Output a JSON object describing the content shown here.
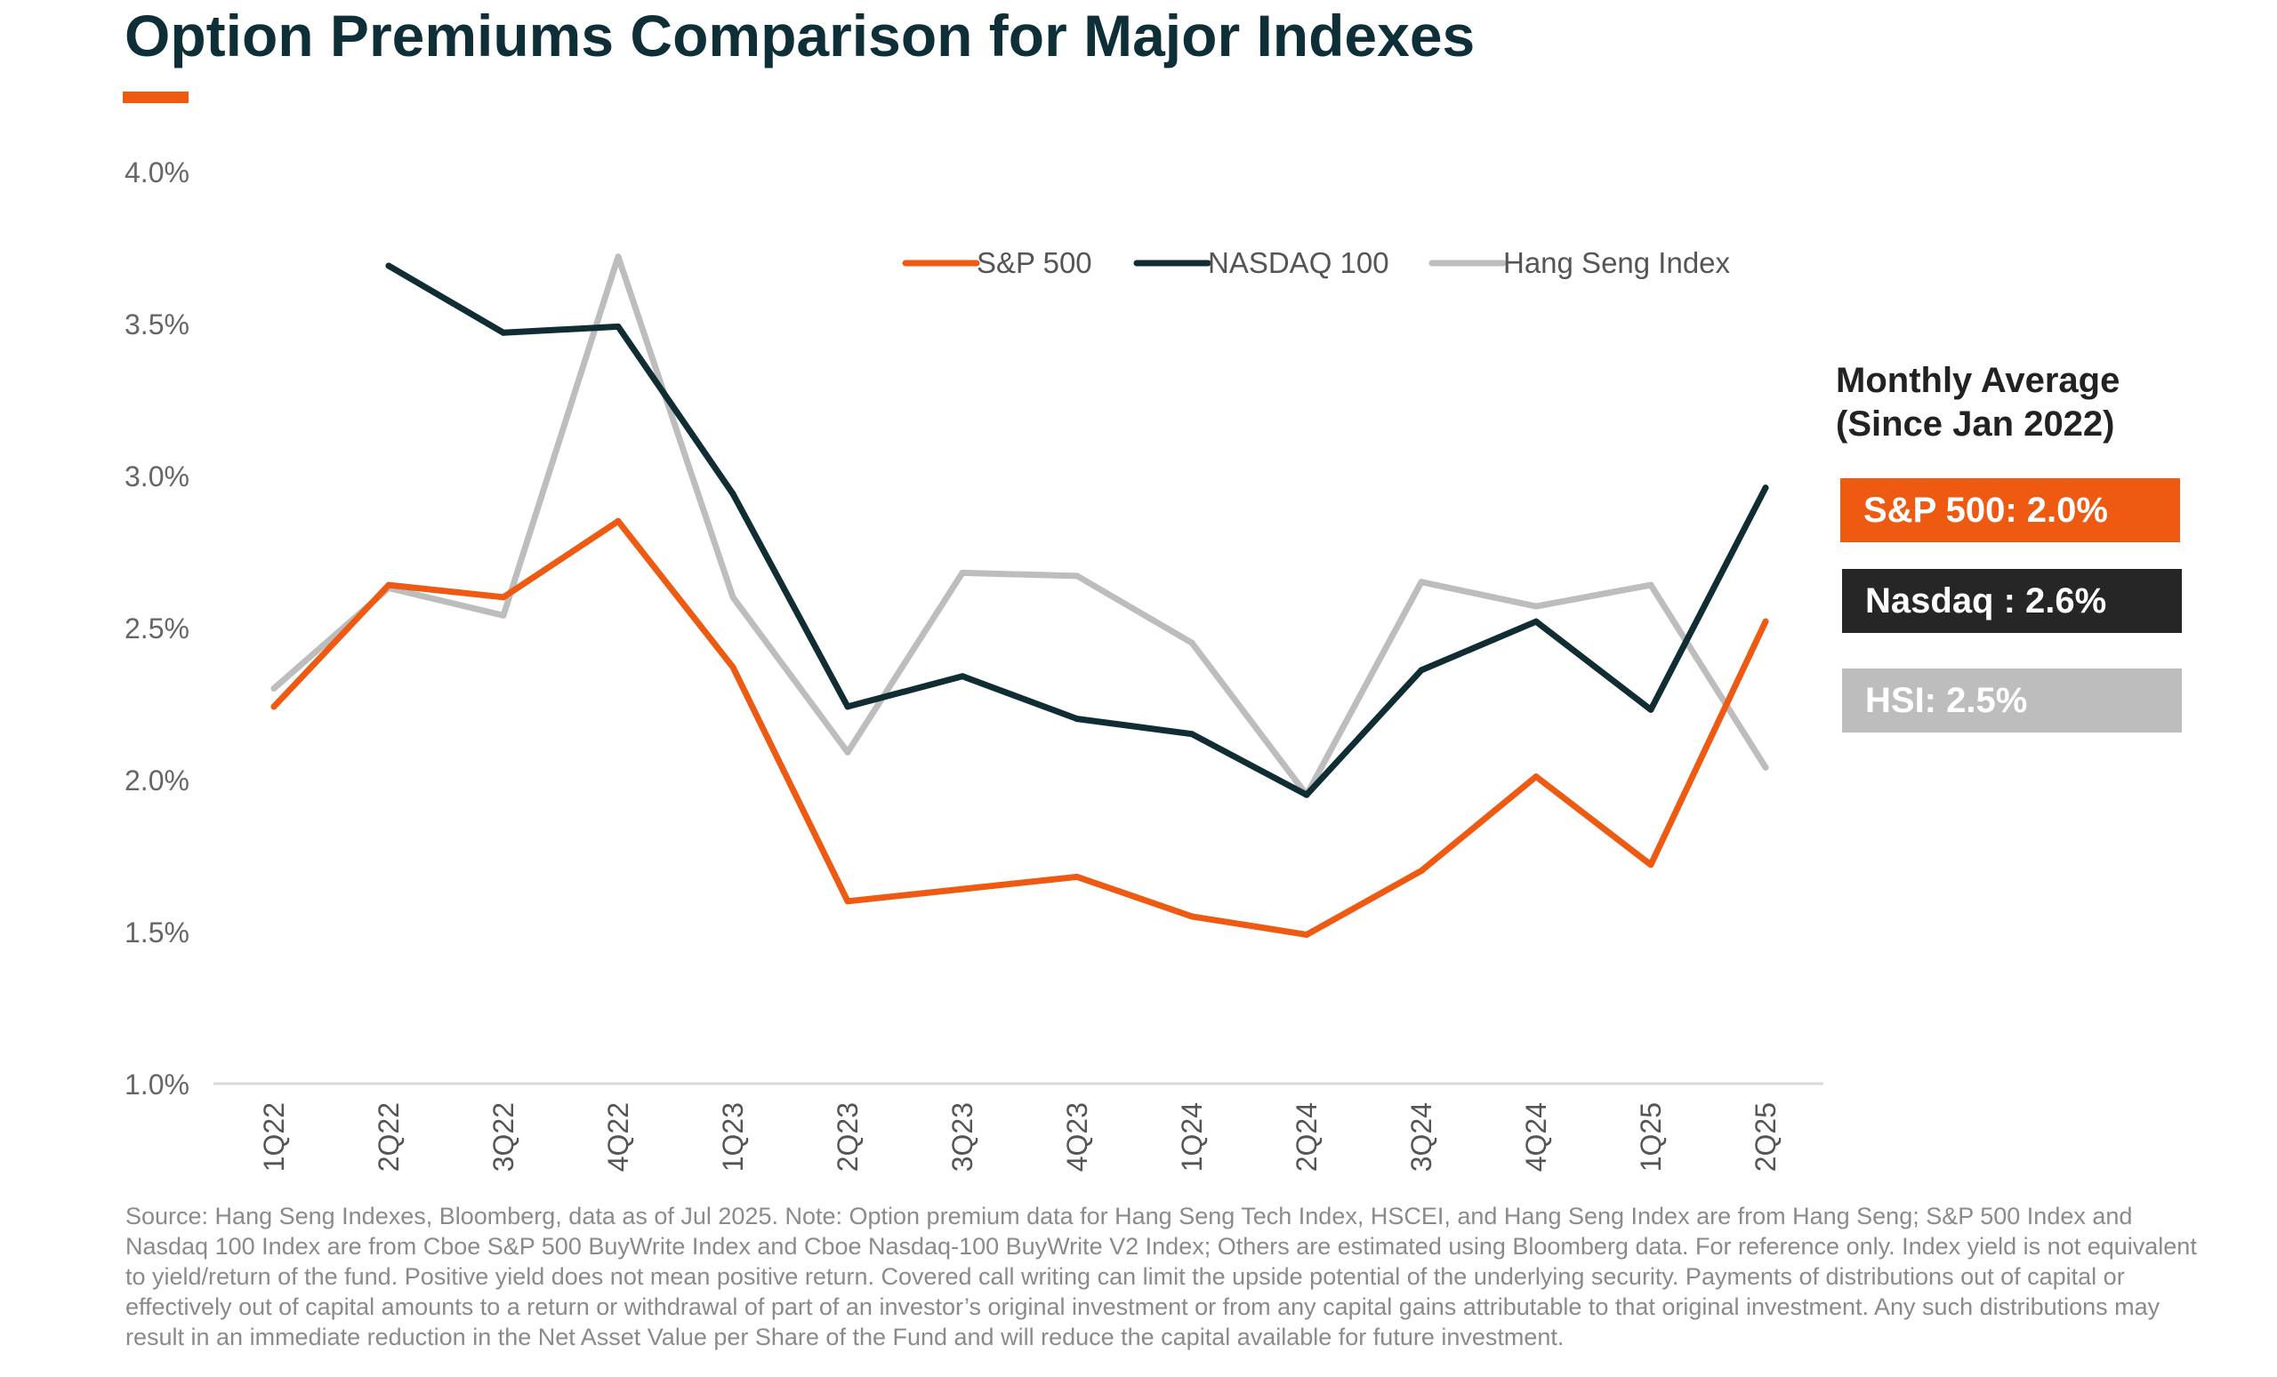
{
  "title": "Option Premiums Comparison for Major Indexes",
  "colors": {
    "title": "#0e2f38",
    "accent": "#f05a0f",
    "sp500": "#ef5a13",
    "nasdaq": "#0f2d33",
    "hsi": "#bdbdbd",
    "nasdaq_box": "#262626"
  },
  "chart_data": {
    "type": "line",
    "categories": [
      "1Q22",
      "2Q22",
      "3Q22",
      "4Q22",
      "1Q23",
      "2Q23",
      "3Q23",
      "4Q23",
      "1Q24",
      "2Q24",
      "3Q24",
      "4Q24",
      "1Q25",
      "2Q25"
    ],
    "series": [
      {
        "name": "S&P 500",
        "color": "#ef5a13",
        "values": [
          2.24,
          2.64,
          2.6,
          2.85,
          2.37,
          1.6,
          1.64,
          1.68,
          1.55,
          1.49,
          1.7,
          2.01,
          1.72,
          2.52
        ]
      },
      {
        "name": "NASDAQ 100",
        "color": "#0f2d33",
        "values": [
          null,
          3.69,
          3.47,
          3.49,
          2.94,
          2.24,
          2.34,
          2.2,
          2.15,
          1.95,
          2.36,
          2.52,
          2.23,
          2.96
        ]
      },
      {
        "name": "Hang Seng Index",
        "color": "#bdbdbd",
        "values": [
          2.3,
          2.63,
          2.54,
          3.72,
          2.6,
          2.09,
          2.68,
          2.67,
          2.45,
          1.95,
          2.65,
          2.57,
          2.64,
          2.04
        ]
      }
    ],
    "y_ticks": [
      "1.0%",
      "1.5%",
      "2.0%",
      "2.5%",
      "3.0%",
      "3.5%",
      "4.0%"
    ],
    "ylim": [
      1.0,
      4.0
    ],
    "xlabel": "",
    "ylabel": "",
    "grid": false,
    "legend_position": "top-right"
  },
  "side_panel": {
    "heading_line1": "Monthly Average",
    "heading_line2": "(Since Jan 2022)",
    "sp500": "S&P 500: 2.0%",
    "nasdaq": "Nasdaq : 2.6%",
    "hsi": "HSI: 2.5%"
  },
  "footnote": "Source: Hang Seng Indexes, Bloomberg, data as of Jul 2025. Note: Option premium data for Hang Seng Tech Index, HSCEI, and Hang Seng Index are from Hang Seng; S&P 500 Index and Nasdaq 100 Index are from Cboe S&P 500 BuyWrite Index and Cboe Nasdaq-100 BuyWrite V2 Index; Others are estimated using Bloomberg data. For reference only. Index yield is not equivalent to yield/return of the fund. Positive yield does not mean positive return. Covered call writing can limit the upside potential of the underlying security. Payments of distributions out of capital or effectively out of capital amounts to a return or withdrawal of part of an investor’s original investment or from any capital gains attributable to that original investment. Any such distributions may result in an immediate reduction in the Net Asset Value per Share of the Fund and will reduce the capital available for future investment."
}
